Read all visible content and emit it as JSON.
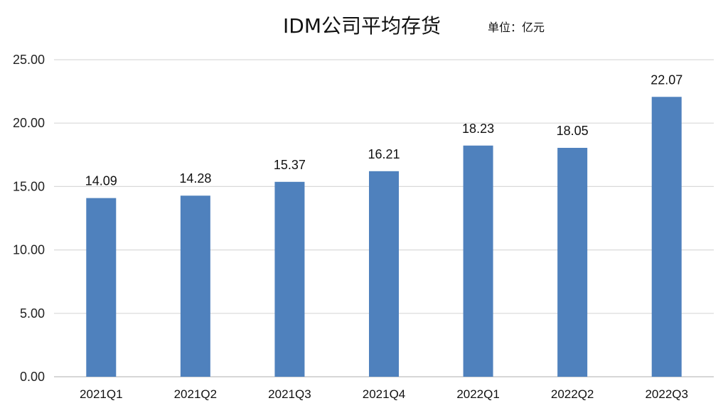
{
  "chart_data": {
    "type": "bar",
    "title": "IDM公司平均存货",
    "unit_label": "单位：亿元",
    "categories": [
      "2021Q1",
      "2021Q2",
      "2021Q3",
      "2021Q4",
      "2022Q1",
      "2022Q2",
      "2022Q3"
    ],
    "values": [
      14.09,
      14.28,
      15.37,
      16.21,
      18.23,
      18.05,
      22.07
    ],
    "data_labels": [
      "14.09",
      "14.28",
      "15.37",
      "16.21",
      "18.23",
      "18.05",
      "22.07"
    ],
    "yticks": [
      "0.00",
      "5.00",
      "10.00",
      "15.00",
      "20.00",
      "25.00"
    ],
    "ylim": [
      0,
      25
    ],
    "xlabel": "",
    "ylabel": "",
    "grid": true,
    "legend": "none",
    "bar_color": "#4f81bd",
    "grid_color": "#d9d9d9"
  }
}
